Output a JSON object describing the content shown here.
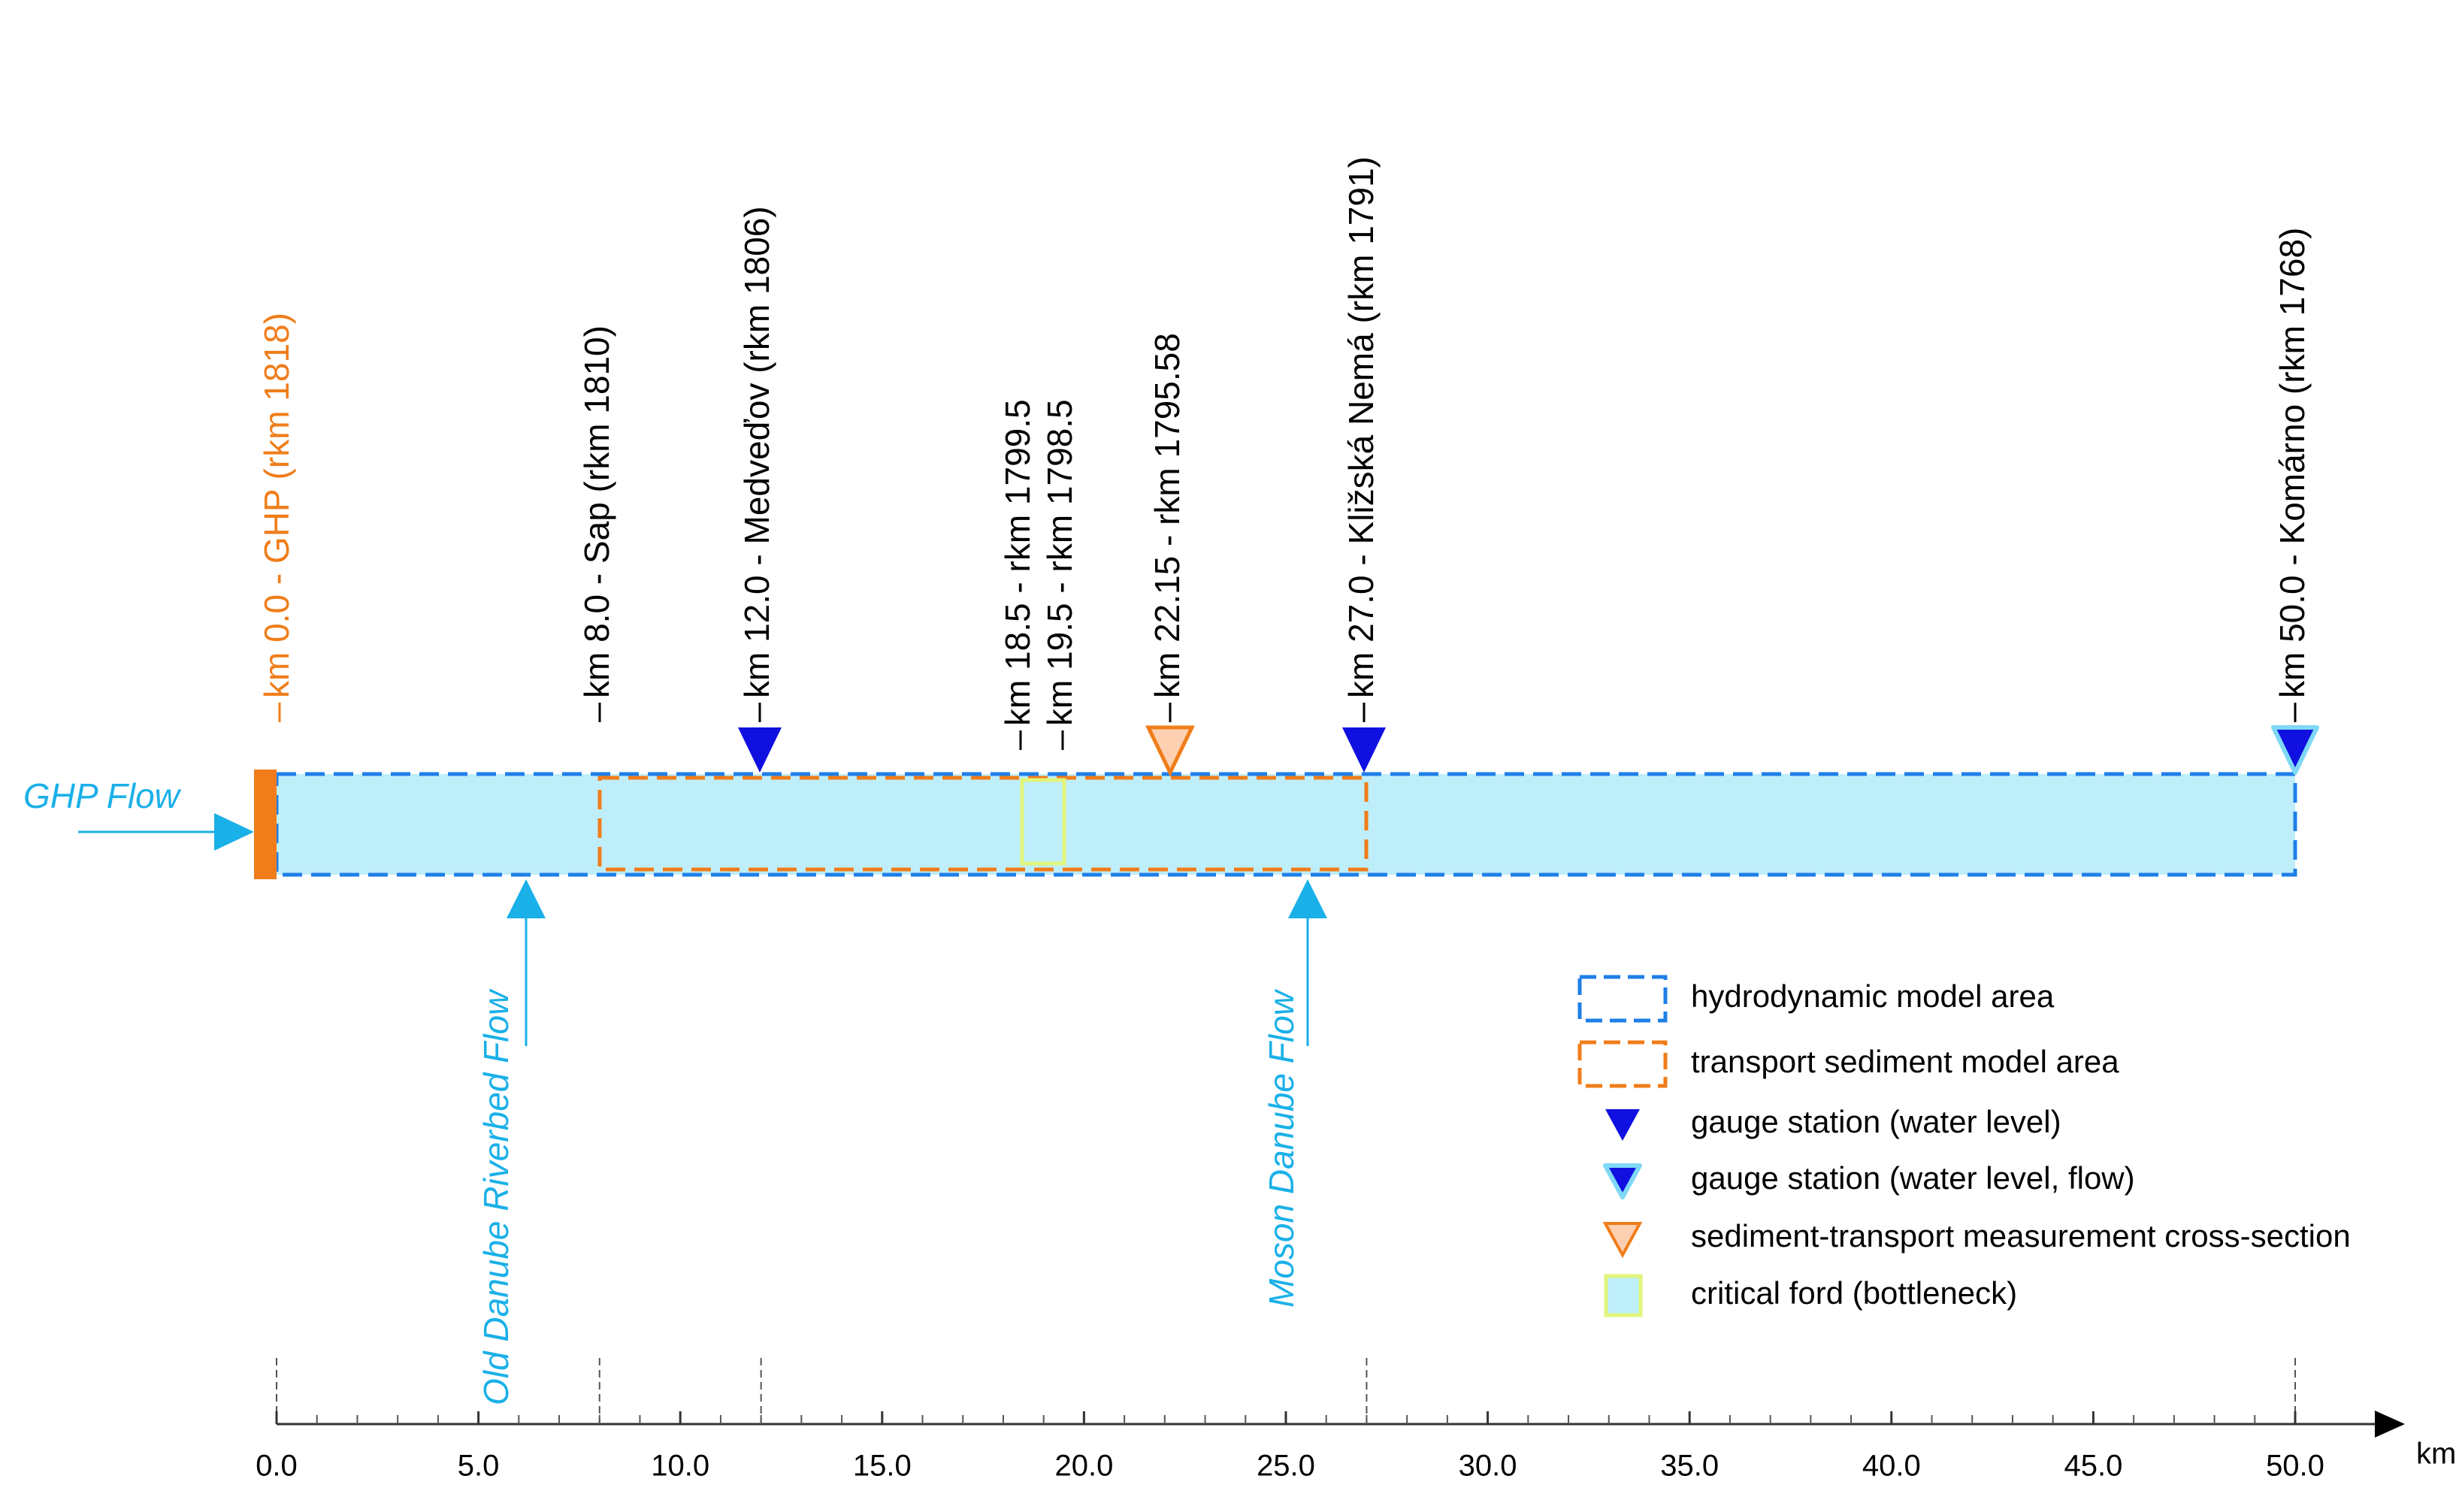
{
  "stations": [
    {
      "label": "km 0.0 - GHP (rkm 1818)"
    },
    {
      "label": "km 8.0 - Sap (rkm 1810)"
    },
    {
      "label": "km 12.0 - Medveďov (rkm 1806)"
    },
    {
      "label": "km 18.5 - rkm 1799.5"
    },
    {
      "label": "km 19.5 - rkm 1798.5"
    },
    {
      "label": "km 22.15 - rkm 1795.58"
    },
    {
      "label": "km 27.0 - Kližská Nemá (rkm 1791)"
    },
    {
      "label": "km 50.0 - Komárno (rkm 1768)"
    }
  ],
  "flows": [
    "GHP Flow",
    "Old Danube Riverbed Flow",
    "Moson Danube Flow"
  ],
  "axis": {
    "ticks": [
      "0.0",
      "5.0",
      "10.0",
      "15.0",
      "20.0",
      "25.0",
      "30.0",
      "35.0",
      "40.0",
      "45.0",
      "50.0"
    ],
    "unit": "km"
  },
  "legend": [
    "hydrodynamic model area",
    "transport sediment model area",
    "gauge station (water level)",
    "gauge station (water level, flow)",
    "sediment-transport measurement cross-section",
    "critical ford (bottleneck)"
  ]
}
